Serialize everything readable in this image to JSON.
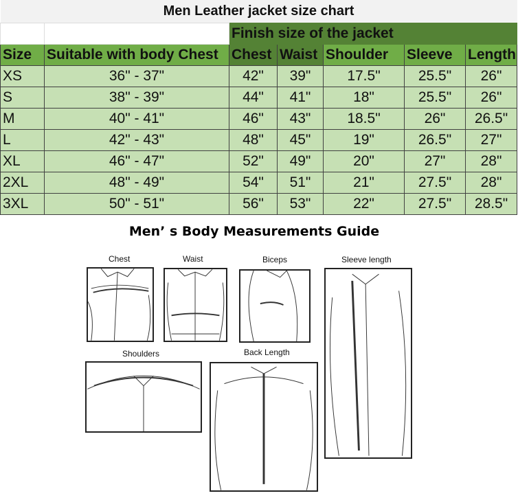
{
  "title": "Men Leather jacket size chart",
  "group_header": "Finish size of the jacket",
  "columns": [
    "Size",
    "Suitable with body Chest",
    "Chest",
    "Waist",
    "Shoulder",
    "Sleeve",
    "Length"
  ],
  "rows": [
    [
      "XS",
      "36\" - 37\"",
      "42\"",
      "39\"",
      "17.5\"",
      "25.5\"",
      "26\""
    ],
    [
      "S",
      "38\" - 39\"",
      "44\"",
      "41\"",
      "18\"",
      "25.5\"",
      "26\""
    ],
    [
      "M",
      "40\" - 41\"",
      "46\"",
      "43\"",
      "18.5\"",
      "26\"",
      "26.5\""
    ],
    [
      "L",
      "42\" - 43\"",
      "48\"",
      "45\"",
      "19\"",
      "26.5\"",
      "27\""
    ],
    [
      "XL",
      "46\" - 47\"",
      "52\"",
      "49\"",
      "20\"",
      "27\"",
      "28\""
    ],
    [
      "2XL",
      "48\" - 49\"",
      "54\"",
      "51\"",
      "21\"",
      "27.5\"",
      "28\""
    ],
    [
      "3XL",
      "50\" - 51\"",
      "56\"",
      "53\"",
      "22\"",
      "27.5\"",
      "28.5\""
    ]
  ],
  "guide": {
    "title": "Men’ s Body Measurements Guide",
    "labels": {
      "chest": "Chest",
      "waist": "Waist",
      "biceps": "Biceps",
      "sleeve": "Sleeve length",
      "shoulders": "Shoulders",
      "back": "Back Length"
    }
  },
  "colors": {
    "header": "#70ad47",
    "group_header": "#548235",
    "rows": "#c6e0b4"
  }
}
